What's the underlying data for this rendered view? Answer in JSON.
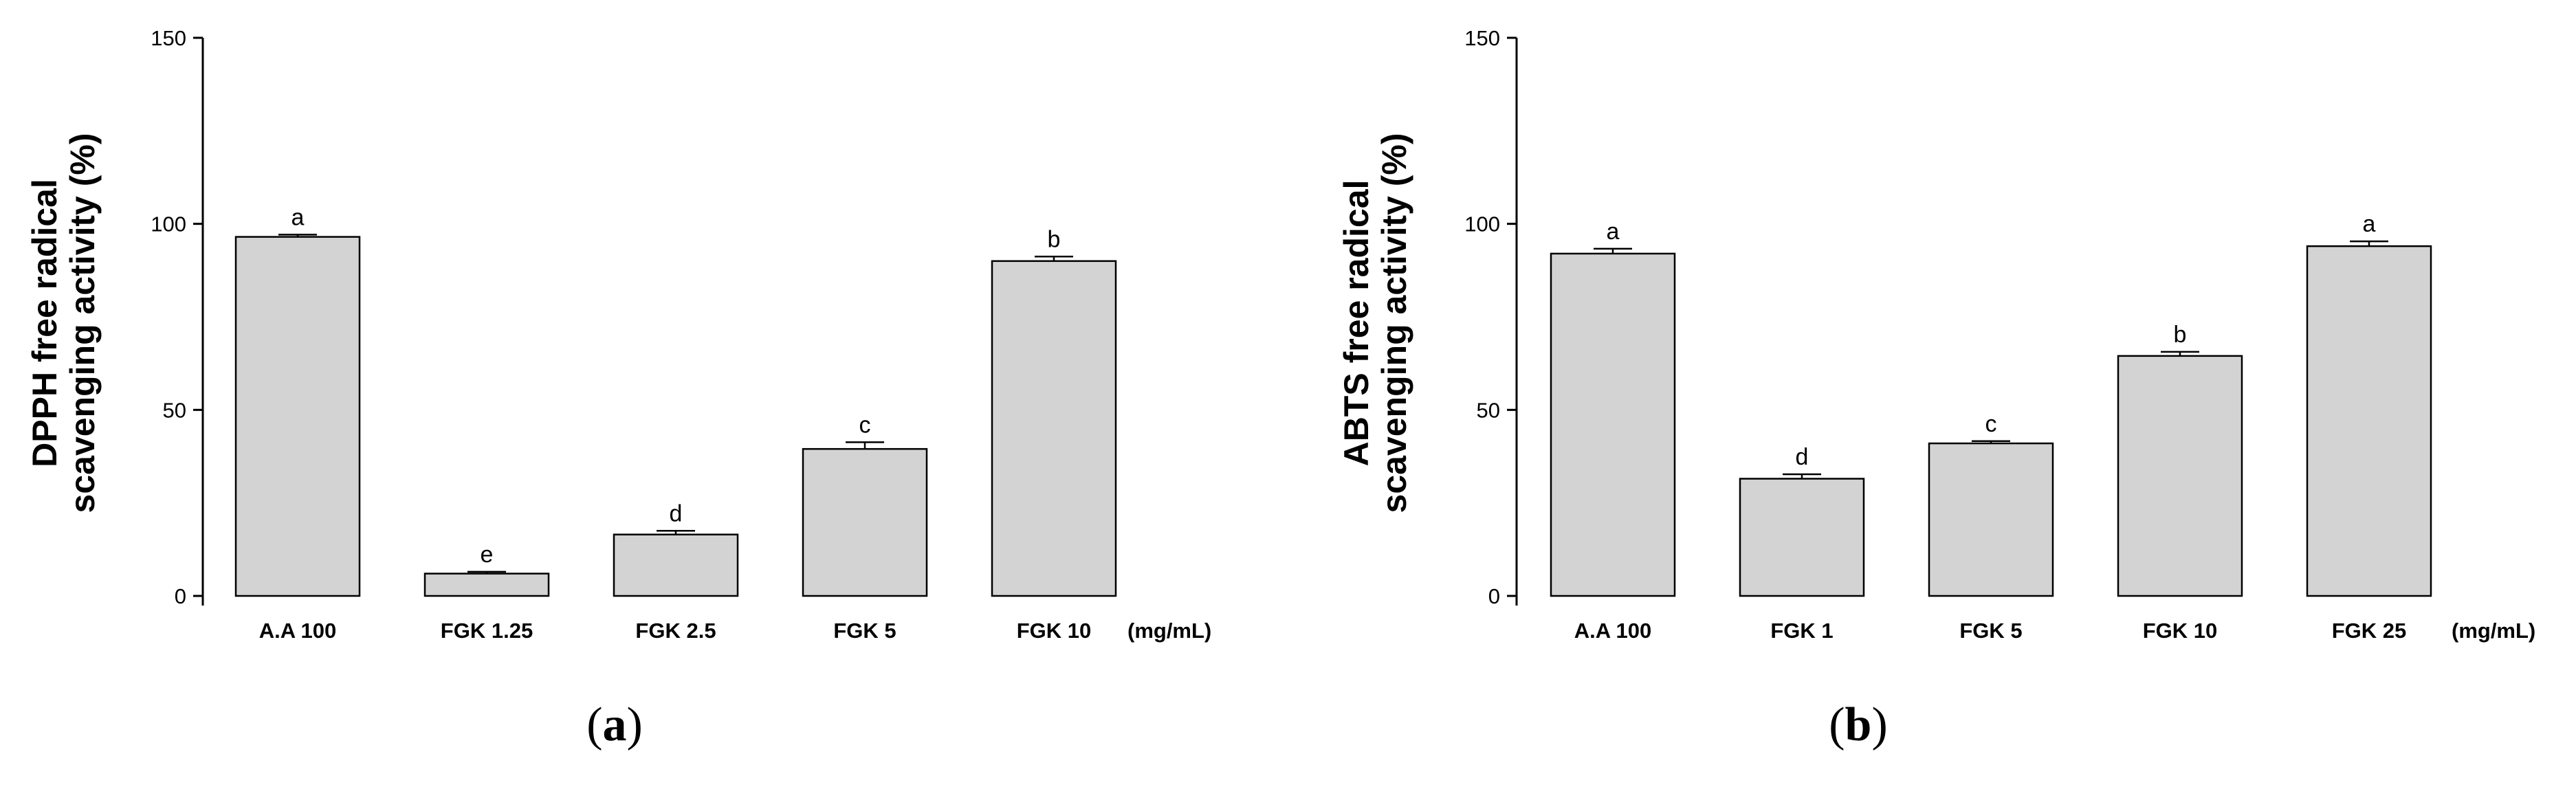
{
  "chart_data": [
    {
      "type": "bar",
      "panel_label": "a",
      "ylabel_line1": "DPPH free radical",
      "ylabel_line2": "scavenging activity (%)",
      "xlabel": "",
      "unit": "(mg/mL)",
      "ylim": [
        0,
        150
      ],
      "yticks": [
        0,
        50,
        100,
        150
      ],
      "categories": [
        "A.A 100",
        "FGK 1.25",
        "FGK 2.5",
        "FGK 5",
        "FGK 10"
      ],
      "values": [
        96.5,
        6.0,
        16.5,
        39.5,
        90.0
      ],
      "errors": [
        0.6,
        0.5,
        1.0,
        1.8,
        1.2
      ],
      "significance": [
        "a",
        "e",
        "d",
        "c",
        "b"
      ],
      "bar_color": "#d3d3d3",
      "edge_color": "#000000"
    },
    {
      "type": "bar",
      "panel_label": "b",
      "ylabel_line1": "ABTS free radical",
      "ylabel_line2": "scavenging activity (%)",
      "xlabel": "",
      "unit": "(mg/mL)",
      "ylim": [
        0,
        150
      ],
      "yticks": [
        0,
        50,
        100,
        150
      ],
      "categories": [
        "A.A 100",
        "FGK 1",
        "FGK 5",
        "FGK 10",
        "FGK 25"
      ],
      "values": [
        92.0,
        31.5,
        41.0,
        64.5,
        94.0
      ],
      "errors": [
        1.3,
        1.2,
        0.6,
        1.1,
        1.3
      ],
      "significance": [
        "a",
        "d",
        "c",
        "b",
        "a"
      ],
      "bar_color": "#d3d3d3",
      "edge_color": "#000000"
    }
  ]
}
